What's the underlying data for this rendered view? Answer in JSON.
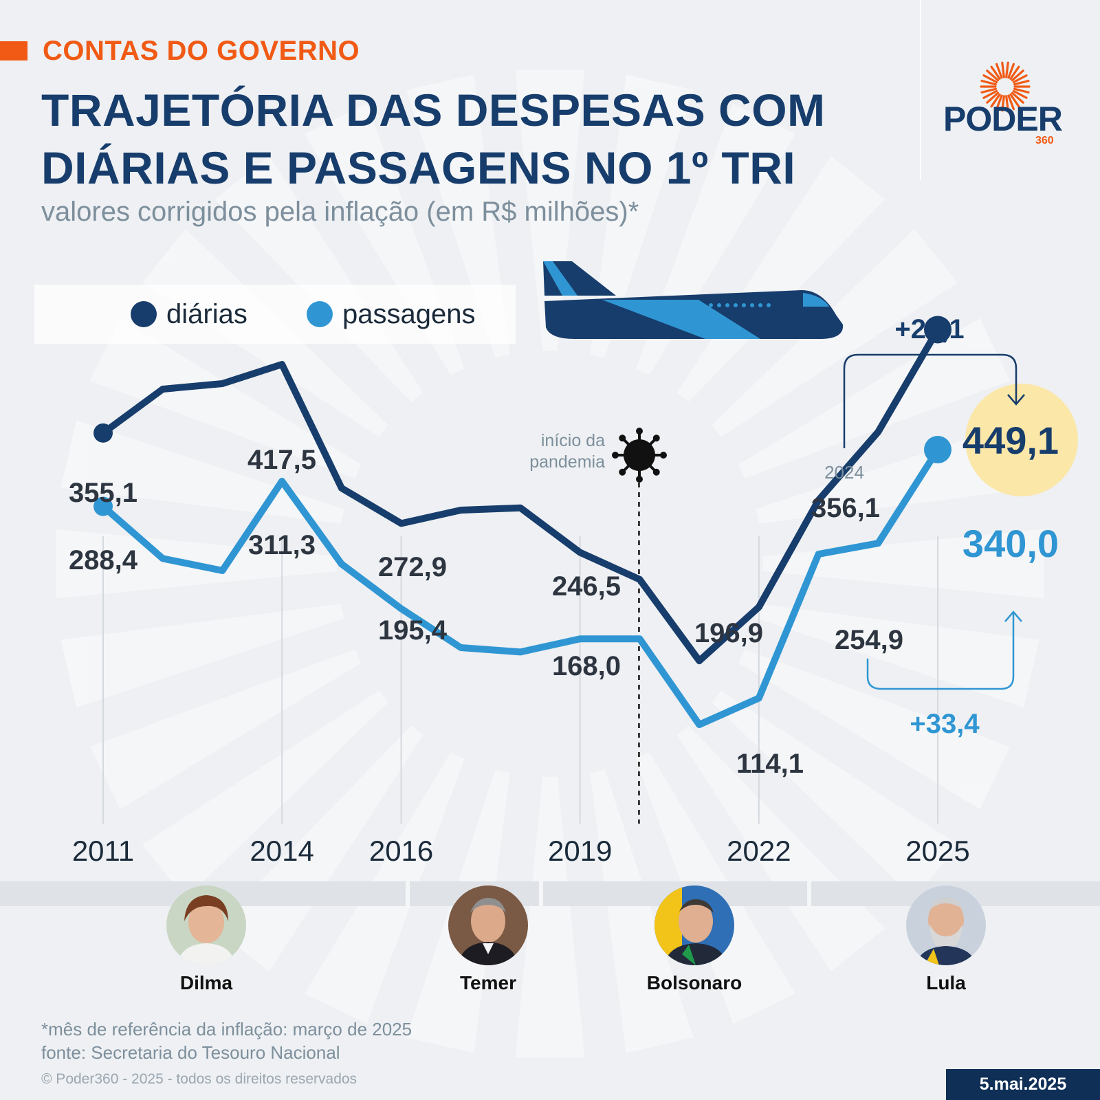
{
  "header": {
    "kicker": "CONTAS DO GOVERNO",
    "title": "TRAJETÓRIA DAS DESPESAS COM DIÁRIAS E PASSAGENS NO 1º TRI",
    "subtitle": "valores corrigidos pela inflação (em R$ milhões)*"
  },
  "brand": {
    "name": "PODER",
    "number": "360",
    "accent": "#f15a14",
    "primary": "#173d6c"
  },
  "legend": [
    {
      "label": "diárias",
      "color": "#173d6c"
    },
    {
      "label": "passagens",
      "color": "#2f96d3"
    }
  ],
  "chart_data": {
    "type": "line",
    "x": [
      2011,
      2012,
      2013,
      2014,
      2015,
      2016,
      2017,
      2018,
      2019,
      2020,
      2021,
      2022,
      2023,
      2024,
      2025
    ],
    "x_tick_labels": [
      "2011",
      "2014",
      "2016",
      "2019",
      "2022",
      "2025"
    ],
    "x_ticks": [
      2011,
      2014,
      2016,
      2019,
      2022,
      2025
    ],
    "ylim": [
      0,
      500
    ],
    "series": [
      {
        "name": "diárias",
        "color": "#173d6c",
        "values": [
          355.1,
          395,
          400,
          417.5,
          305,
          272.9,
          285,
          287,
          246.5,
          222,
          148,
          196.9,
          294,
          356.1,
          449.1
        ],
        "labels": [
          {
            "x": 2011,
            "text": "355,1"
          },
          {
            "x": 2014,
            "text": "417,5"
          },
          {
            "x": 2016,
            "text": "272,9"
          },
          {
            "x": 2019,
            "text": "246,5"
          },
          {
            "x": 2022,
            "text": "196,9"
          },
          {
            "x": 2024,
            "text": "356,1"
          },
          {
            "x": 2025,
            "text": "449,1"
          }
        ]
      },
      {
        "name": "passagens",
        "color": "#2f96d3",
        "values": [
          288.4,
          241,
          230,
          311.3,
          236,
          195.4,
          160,
          156,
          168.0,
          168,
          90,
          114.1,
          245,
          254.9,
          340.0
        ],
        "labels": [
          {
            "x": 2011,
            "text": "288,4"
          },
          {
            "x": 2014,
            "text": "311,3"
          },
          {
            "x": 2016,
            "text": "195,4"
          },
          {
            "x": 2019,
            "text": "168,0"
          },
          {
            "x": 2022,
            "text": "114,1"
          },
          {
            "x": 2024,
            "text": "254,9"
          },
          {
            "x": 2025,
            "text": "340,0"
          }
        ]
      }
    ],
    "annotations": {
      "pandemic_label": "início da pandemia",
      "pandemic_x": 2020,
      "year_2024": "2024",
      "diarias_change": "+26,1",
      "passagens_change": "+33,4",
      "highlight_color": "#fbe7a8"
    }
  },
  "leaders": [
    {
      "name": "Dilma"
    },
    {
      "name": "Temer"
    },
    {
      "name": "Bolsonaro"
    },
    {
      "name": "Lula"
    }
  ],
  "footer": {
    "note": "*mês de referência da inflação: março de 2025",
    "source": "fonte: Secretaria do Tesouro Nacional",
    "copyright": "© Poder360 - 2025 - todos os direitos reservados",
    "date": "5.mai.2025"
  }
}
